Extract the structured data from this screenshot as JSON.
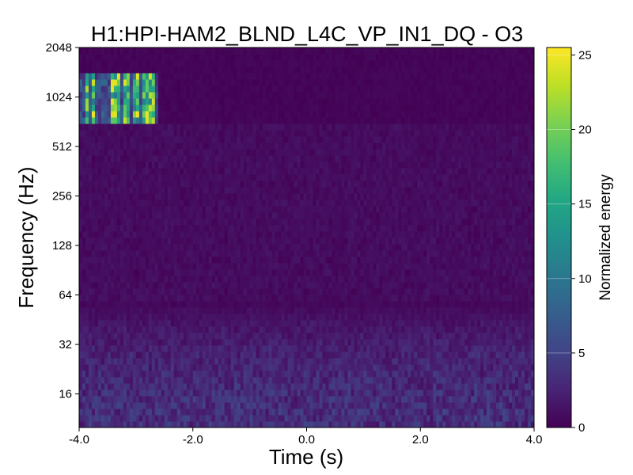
{
  "chart_data": {
    "type": "heatmap",
    "title": "H1:HPI-HAM2_BLND_L4C_VP_IN1_DQ - O3",
    "xlabel": "Time (s)",
    "ylabel": "Frequency (Hz)",
    "colorbar_label": "Normalized energy",
    "xlim": [
      -4.0,
      4.0
    ],
    "ylim": [
      10,
      2048
    ],
    "y_scale": "log2",
    "colormap": "viridis",
    "x_ticks": [
      "-4.0",
      "-2.0",
      "0.0",
      "2.0",
      "4.0"
    ],
    "x_tick_values": [
      -4,
      -2,
      0,
      2,
      4
    ],
    "y_ticks": [
      "16",
      "32",
      "64",
      "128",
      "256",
      "512",
      "1024",
      "2048"
    ],
    "y_tick_values": [
      16,
      32,
      64,
      128,
      256,
      512,
      1024,
      2048
    ],
    "colorbar_ticks": [
      "0",
      "5",
      "10",
      "15",
      "20",
      "25"
    ],
    "colorbar_tick_values": [
      0,
      5,
      10,
      15,
      20,
      25
    ],
    "colorbar_range": [
      0,
      25.5
    ],
    "features": [
      {
        "description": "high-energy glitch stripes",
        "t_start": -4.0,
        "t_end": -2.6,
        "f_low": 700,
        "f_high": 1500,
        "peak_energy": 25
      },
      {
        "description": "band edge",
        "f": 700
      },
      {
        "description": "low-frequency background noise",
        "f_low": 10,
        "f_high": 60,
        "typical_energy": 4
      }
    ]
  },
  "colors": {
    "viridis_low": "#440154",
    "viridis_high": "#fde725",
    "background": "#ffffff"
  }
}
